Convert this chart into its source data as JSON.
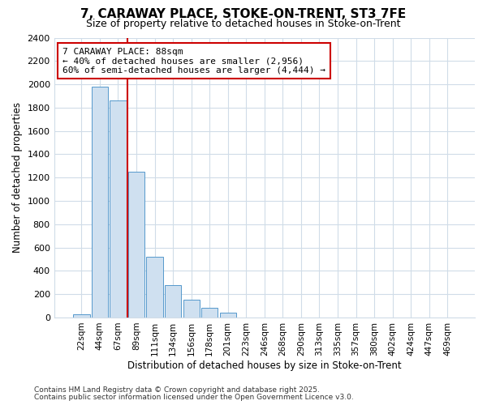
{
  "title": "7, CARAWAY PLACE, STOKE-ON-TRENT, ST3 7FE",
  "subtitle": "Size of property relative to detached houses in Stoke-on-Trent",
  "xlabel": "Distribution of detached houses by size in Stoke-on-Trent",
  "ylabel": "Number of detached properties",
  "categories": [
    "22sqm",
    "44sqm",
    "67sqm",
    "89sqm",
    "111sqm",
    "134sqm",
    "156sqm",
    "178sqm",
    "201sqm",
    "223sqm",
    "246sqm",
    "268sqm",
    "290sqm",
    "313sqm",
    "335sqm",
    "357sqm",
    "380sqm",
    "402sqm",
    "424sqm",
    "447sqm",
    "469sqm"
  ],
  "values": [
    25,
    1980,
    1860,
    1250,
    520,
    275,
    150,
    85,
    40,
    0,
    0,
    0,
    0,
    0,
    0,
    0,
    0,
    0,
    0,
    0,
    0
  ],
  "property_label": "7 CARAWAY PLACE: 88sqm",
  "annotation_line1": "← 40% of detached houses are smaller (2,956)",
  "annotation_line2": "60% of semi-detached houses are larger (4,444) →",
  "bar_color": "#cfe0f0",
  "bar_edge_color": "#5599cc",
  "vline_color": "#cc0000",
  "vline_x_index": 3,
  "annotation_box_color": "white",
  "annotation_box_edge": "#cc0000",
  "ylim": [
    0,
    2400
  ],
  "yticks": [
    0,
    200,
    400,
    600,
    800,
    1000,
    1200,
    1400,
    1600,
    1800,
    2000,
    2200,
    2400
  ],
  "footnote1": "Contains HM Land Registry data © Crown copyright and database right 2025.",
  "footnote2": "Contains public sector information licensed under the Open Government Licence v3.0.",
  "bg_color": "#ffffff",
  "grid_color": "#d0dce8"
}
